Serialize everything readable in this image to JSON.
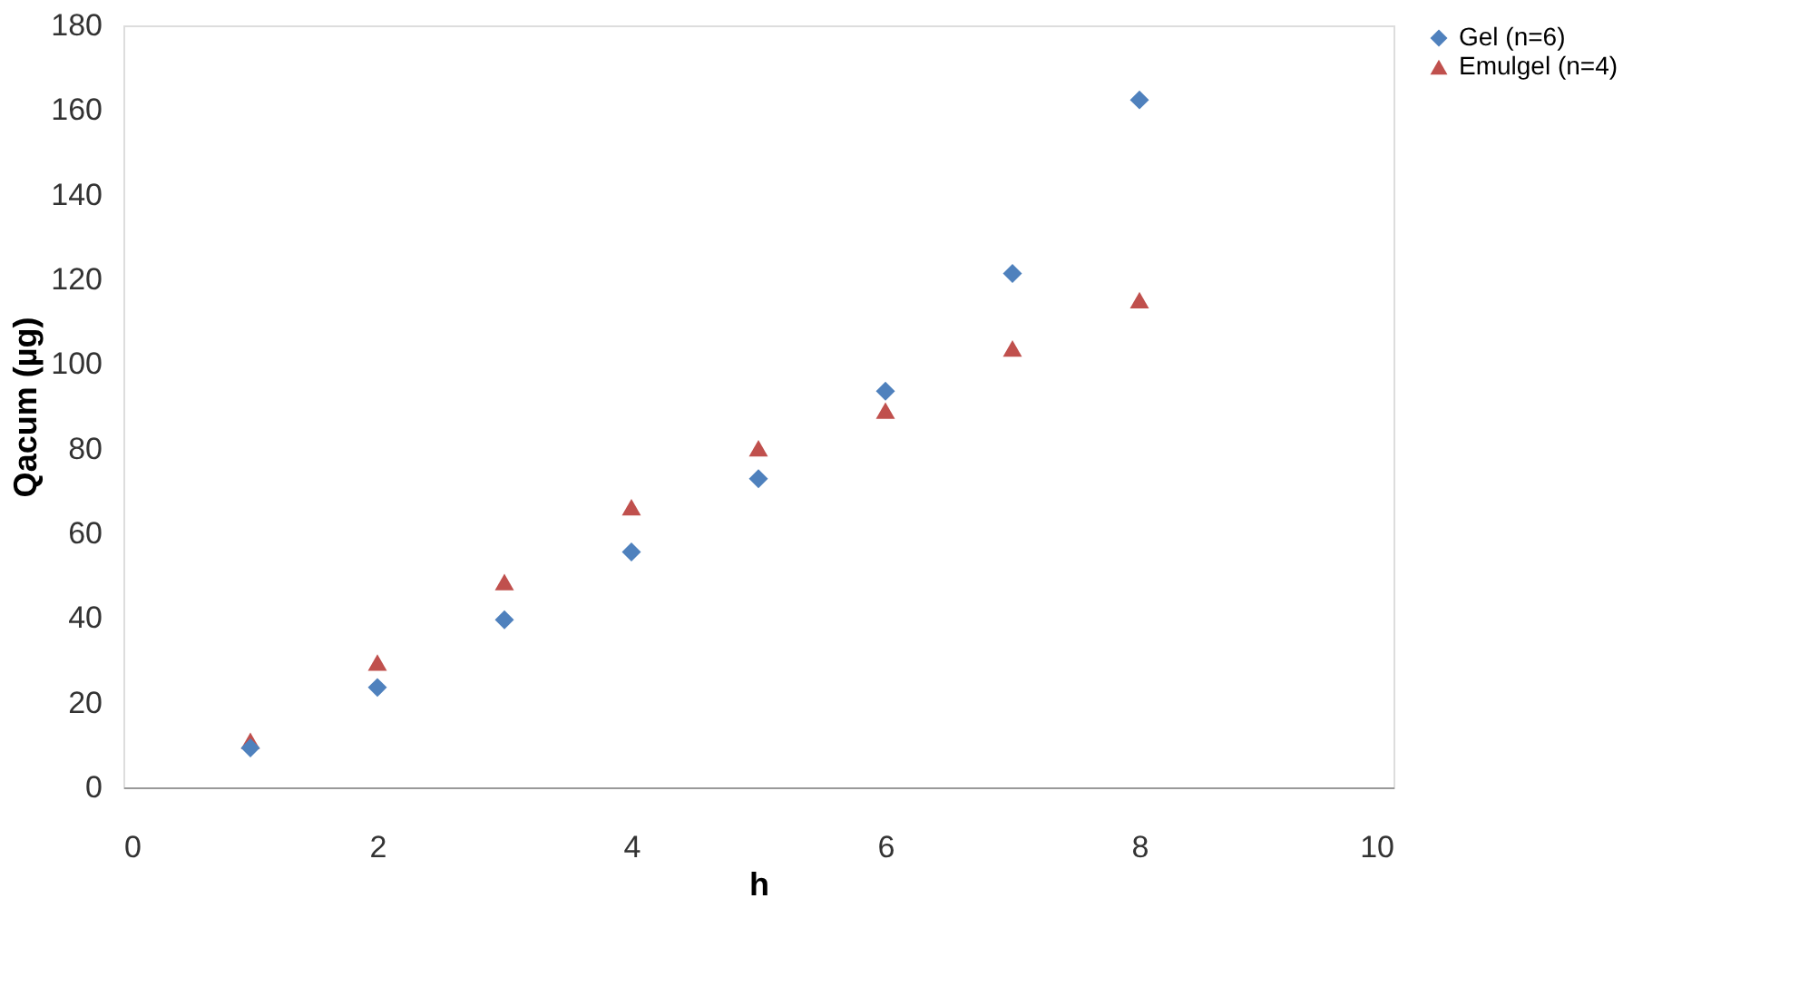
{
  "chart_data": {
    "type": "scatter",
    "xlabel": "h",
    "ylabel": "Qacum (µg)",
    "x": [
      1,
      2,
      3,
      4,
      5,
      6,
      7,
      8
    ],
    "series": [
      {
        "name": "Gel (n=6)",
        "color": "#4f81bd",
        "marker": "diamond",
        "values": [
          9.3,
          23.6,
          39.6,
          55.6,
          72.9,
          93.6,
          121.4,
          162.4
        ]
      },
      {
        "name": "Emulgel (n=4)",
        "color": "#c0504d",
        "marker": "triangle",
        "values": [
          11,
          29.5,
          48.5,
          66.2,
          80.1,
          89,
          103.7,
          115.1
        ]
      }
    ],
    "xlim": [
      0,
      10
    ],
    "xticks": [
      0,
      2,
      4,
      6,
      8,
      10
    ],
    "ylim": [
      0,
      180
    ],
    "yticks": [
      0,
      20,
      40,
      60,
      80,
      100,
      120,
      140,
      160,
      180
    ],
    "grid": false,
    "legend": "right"
  }
}
